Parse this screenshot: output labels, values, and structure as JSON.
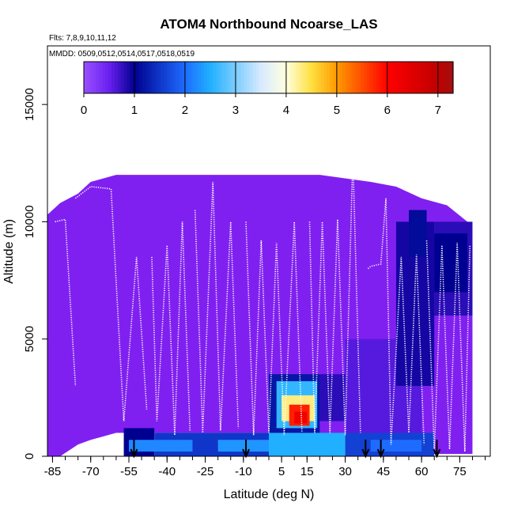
{
  "chart_data": {
    "type": "heatmap",
    "title": "ATOM4 Northbound Ncoarse_LAS",
    "subtitle_flights": "Flts: 7,8,9,10,11,12",
    "subtitle_dates": "MMDD: 0509,0512,0514,0517,0518,0519",
    "xlabel": "Latitude (deg N)",
    "ylabel": "Altitude (m)",
    "xlim": [
      -87,
      87
    ],
    "ylim": [
      0,
      17500
    ],
    "x_tick_labels": [
      "-85",
      "-70",
      "-55",
      "-40",
      "-25",
      "-10",
      "5",
      "15",
      "30",
      "45",
      "60",
      "75"
    ],
    "x_tick_values": [
      -85,
      -70,
      -55,
      -40,
      -25,
      -10,
      5,
      15,
      30,
      45,
      60,
      75
    ],
    "x_minor_step": 5,
    "y_tick_labels": [
      "0",
      "5000",
      "10000",
      "15000"
    ],
    "y_tick_values": [
      0,
      5000,
      10000,
      15000
    ],
    "colorbar": {
      "min": 0,
      "max": 7.3,
      "tick_labels": [
        "0",
        "1",
        "2",
        "3",
        "4",
        "5",
        "6",
        "7"
      ],
      "tick_values": [
        0,
        1,
        2,
        3,
        4,
        5,
        6,
        7
      ]
    },
    "colors": {
      "background_field": "#8020f0",
      "profile_track": "#ffffff",
      "arrow": "#000000"
    },
    "envelope": [
      [
        -87,
        0,
        10300
      ],
      [
        -82,
        0,
        10800
      ],
      [
        -75,
        500,
        11200
      ],
      [
        -70,
        700,
        11700
      ],
      [
        -60,
        1000,
        12000
      ],
      [
        -40,
        1000,
        12000
      ],
      [
        -20,
        1000,
        12000
      ],
      [
        0,
        1000,
        12000
      ],
      [
        20,
        1000,
        12000
      ],
      [
        40,
        800,
        11700
      ],
      [
        50,
        300,
        11500
      ],
      [
        60,
        100,
        11000
      ],
      [
        70,
        100,
        10700
      ],
      [
        78,
        100,
        10000
      ],
      [
        80,
        100,
        9000
      ]
    ],
    "field_cells": [
      {
        "lat": [
          -57,
          -45
        ],
        "alt": [
          0,
          1200
        ],
        "value": 1.0
      },
      {
        "lat": [
          -45,
          0
        ],
        "alt": [
          0,
          1000
        ],
        "value": 1.5
      },
      {
        "lat": [
          0,
          30
        ],
        "alt": [
          0,
          1000
        ],
        "value": 2.5
      },
      {
        "lat": [
          30,
          65
        ],
        "alt": [
          0,
          1000
        ],
        "value": 1.6
      },
      {
        "lat": [
          -55,
          -30
        ],
        "alt": [
          200,
          700
        ],
        "value": 2.2
      },
      {
        "lat": [
          -20,
          0
        ],
        "alt": [
          200,
          700
        ],
        "value": 2.3
      },
      {
        "lat": [
          40,
          60
        ],
        "alt": [
          200,
          700
        ],
        "value": 2.0
      },
      {
        "lat": [
          0,
          20
        ],
        "alt": [
          1000,
          3500
        ],
        "value": 1.2
      },
      {
        "lat": [
          3,
          19
        ],
        "alt": [
          1200,
          3200
        ],
        "value": 2.6
      },
      {
        "lat": [
          5,
          18
        ],
        "alt": [
          1500,
          2600
        ],
        "value": 4.3
      },
      {
        "lat": [
          8,
          16
        ],
        "alt": [
          1300,
          2200
        ],
        "value": 5.8
      },
      {
        "lat": [
          10,
          15
        ],
        "alt": [
          1400,
          1900
        ],
        "value": 6.2
      },
      {
        "lat": [
          20,
          32
        ],
        "alt": [
          1500,
          3500
        ],
        "value": 0.8
      },
      {
        "lat": [
          30,
          60
        ],
        "alt": [
          1000,
          5000
        ],
        "value": 0.6
      },
      {
        "lat": [
          50,
          65
        ],
        "alt": [
          3000,
          10000
        ],
        "value": 0.9
      },
      {
        "lat": [
          65,
          80
        ],
        "alt": [
          6000,
          10000
        ],
        "value": 0.8
      },
      {
        "lat": [
          55,
          62
        ],
        "alt": [
          8500,
          10500
        ],
        "value": 1.1
      },
      {
        "lat": [
          65,
          78
        ],
        "alt": [
          7000,
          9500
        ],
        "value": 1.0
      }
    ],
    "arrow_latitudes": [
      -53,
      -9,
      38,
      44,
      66
    ],
    "profile_tracks": [
      [
        [
          -84,
          10000
        ],
        [
          -80,
          10100
        ],
        [
          -76,
          3000
        ]
      ],
      [
        [
          -76,
          11000
        ],
        [
          -70,
          11500
        ],
        [
          -62,
          11400
        ],
        [
          -57,
          1500
        ],
        [
          -52,
          8500
        ],
        [
          -48,
          2000
        ]
      ],
      [
        [
          -46,
          8500
        ],
        [
          -44,
          1500
        ],
        [
          -40,
          9000
        ],
        [
          -37,
          900
        ],
        [
          -34,
          10000
        ],
        [
          -31,
          1100
        ]
      ],
      [
        [
          -29,
          10500
        ],
        [
          -26,
          1000
        ],
        [
          -22,
          11700
        ],
        [
          -19,
          1100
        ],
        [
          -15,
          10000
        ],
        [
          -12,
          1200
        ]
      ],
      [
        [
          -9,
          10000
        ],
        [
          -6,
          900
        ],
        [
          -3,
          9200
        ],
        [
          0,
          1000
        ],
        [
          3,
          9100
        ],
        [
          6,
          900
        ],
        [
          10,
          10000
        ],
        [
          13,
          1000
        ]
      ],
      [
        [
          16,
          10000
        ],
        [
          18,
          1000
        ],
        [
          21,
          10000
        ],
        [
          24,
          1000
        ],
        [
          27,
          10100
        ],
        [
          30,
          900
        ],
        [
          33,
          12800
        ],
        [
          36,
          1000
        ]
      ],
      [
        [
          39,
          8000
        ],
        [
          40,
          8100
        ],
        [
          44,
          8200
        ],
        [
          46,
          11000
        ],
        [
          48,
          500
        ],
        [
          52,
          8500
        ],
        [
          55,
          1000
        ],
        [
          58,
          8600
        ],
        [
          61,
          500
        ]
      ],
      [
        [
          62,
          9200
        ],
        [
          65,
          200
        ],
        [
          68,
          9000
        ],
        [
          71,
          300
        ],
        [
          74,
          9100
        ],
        [
          77,
          200
        ],
        [
          79,
          9000
        ]
      ]
    ]
  }
}
